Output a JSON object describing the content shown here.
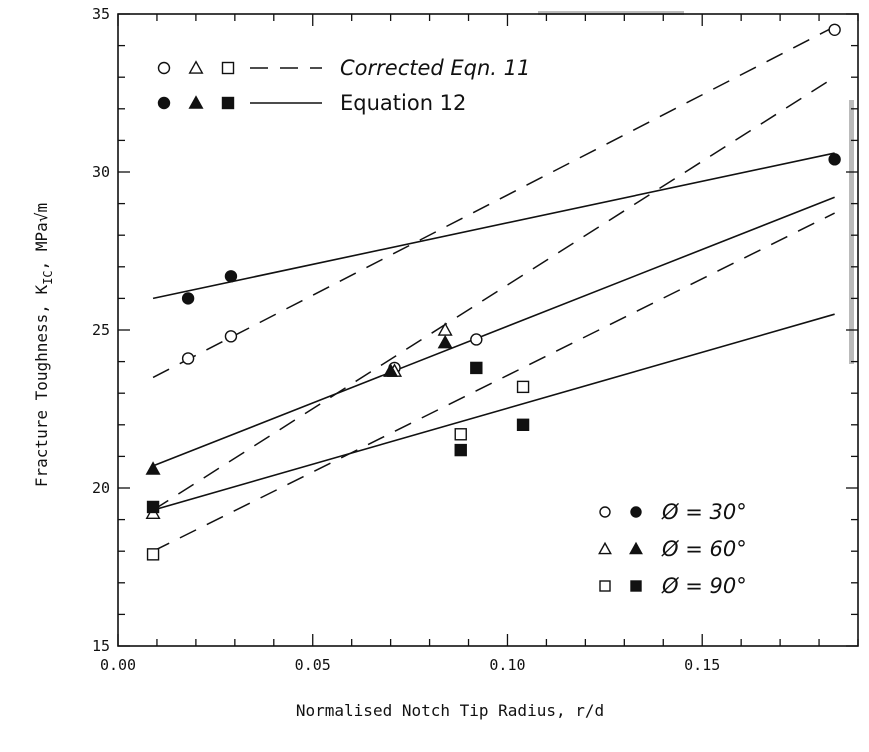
{
  "chart_data": {
    "type": "scatter",
    "title": "",
    "xlabel": "Normalised Notch Tip Radius, r/d",
    "ylabel": "Fracture Toughness, K_IC, MPa√m",
    "ylabel_parts": {
      "main": "Fracture Toughness, K",
      "sub": "IC",
      "unit": ", MPa√m"
    },
    "xlim": [
      0.0,
      0.19
    ],
    "ylim": [
      15,
      35
    ],
    "x_ticks": [
      {
        "value": 0.0,
        "label": "0.00"
      },
      {
        "value": 0.05,
        "label": "0.05"
      },
      {
        "value": 0.1,
        "label": "0.10"
      },
      {
        "value": 0.15,
        "label": "0.15"
      }
    ],
    "y_ticks": [
      {
        "value": 15,
        "label": "15"
      },
      {
        "value": 20,
        "label": "20"
      },
      {
        "value": 25,
        "label": "25"
      },
      {
        "value": 30,
        "label": "30"
      },
      {
        "value": 35,
        "label": "35"
      }
    ],
    "minor_x_step": 0.01,
    "minor_y_step": 1,
    "grid": false,
    "legend_top": {
      "placement": "top-left",
      "entries": [
        {
          "symbols": "open",
          "line": "dashed",
          "label": "Corrected Eqn. 11"
        },
        {
          "symbols": "filled",
          "line": "solid",
          "label": "Equation 12"
        }
      ]
    },
    "legend_bottom": {
      "placement": "bottom-right",
      "entries": [
        {
          "marker": "circle",
          "label": "Ø = 30°"
        },
        {
          "marker": "triangle",
          "label": "Ø = 60°"
        },
        {
          "marker": "square",
          "label": "Ø = 90°"
        }
      ]
    },
    "series": [
      {
        "marker": "circle",
        "filled": false,
        "points": [
          [
            0.018,
            24.1
          ],
          [
            0.029,
            24.8
          ],
          [
            0.071,
            23.8
          ],
          [
            0.092,
            24.7
          ],
          [
            0.184,
            34.5
          ]
        ]
      },
      {
        "marker": "circle",
        "filled": true,
        "points": [
          [
            0.018,
            26.0
          ],
          [
            0.029,
            26.7
          ],
          [
            0.184,
            30.4
          ]
        ]
      },
      {
        "marker": "triangle",
        "filled": false,
        "points": [
          [
            0.009,
            19.2
          ],
          [
            0.071,
            23.7
          ],
          [
            0.084,
            25.0
          ]
        ]
      },
      {
        "marker": "triangle",
        "filled": true,
        "points": [
          [
            0.009,
            20.6
          ],
          [
            0.07,
            23.7
          ],
          [
            0.084,
            24.6
          ]
        ]
      },
      {
        "marker": "square",
        "filled": false,
        "points": [
          [
            0.009,
            17.9
          ],
          [
            0.088,
            21.7
          ],
          [
            0.104,
            23.2
          ]
        ]
      },
      {
        "marker": "square",
        "filled": true,
        "points": [
          [
            0.009,
            19.4
          ],
          [
            0.088,
            21.2
          ],
          [
            0.092,
            23.8
          ],
          [
            0.104,
            22.0
          ]
        ]
      }
    ],
    "lines": [
      {
        "style": "dashed",
        "from": [
          0.009,
          23.5
        ],
        "to": [
          0.184,
          34.6
        ]
      },
      {
        "style": "dashed",
        "from": [
          0.009,
          19.3
        ],
        "to": [
          0.184,
          33.0
        ]
      },
      {
        "style": "dashed",
        "from": [
          0.009,
          18.0
        ],
        "to": [
          0.184,
          28.7
        ]
      },
      {
        "style": "solid",
        "from": [
          0.009,
          26.0
        ],
        "to": [
          0.184,
          30.6
        ]
      },
      {
        "style": "solid",
        "from": [
          0.009,
          20.7
        ],
        "to": [
          0.184,
          29.2
        ]
      },
      {
        "style": "solid",
        "from": [
          0.009,
          19.3
        ],
        "to": [
          0.184,
          25.5
        ]
      }
    ]
  }
}
